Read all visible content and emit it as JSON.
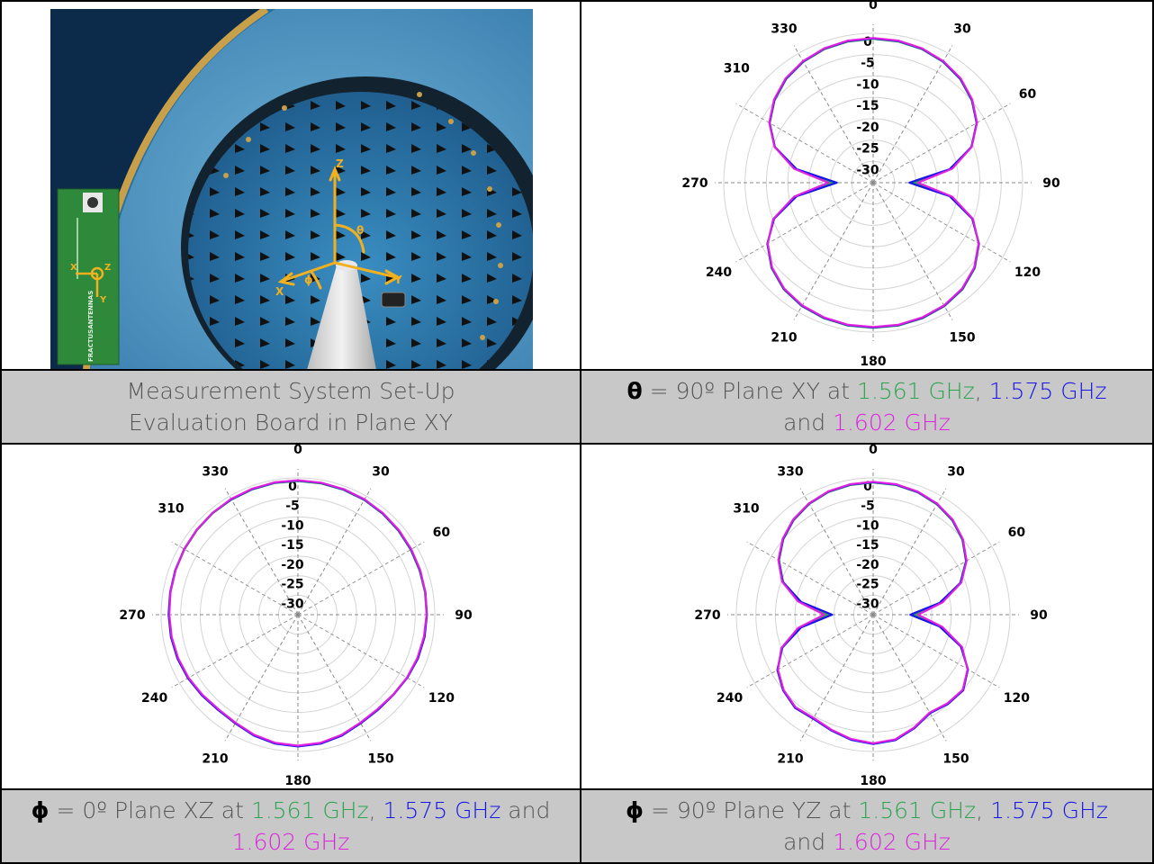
{
  "captions": {
    "setup": {
      "line1": "Measurement System Set-Up",
      "line2": "Evaluation Board in Plane XY"
    },
    "xy": {
      "symbol": "θ",
      "prefix": " = 90º Plane XY at ",
      "f1": "1.561 GHz",
      "sep1": ", ",
      "f2": "1.575 GHz",
      "sep2": " and ",
      "f3": "1.602 GHz"
    },
    "xz": {
      "symbol": "ϕ",
      "prefix": " = 0º Plane XZ at ",
      "f1": "1.561 GHz",
      "sep1": ", ",
      "f2": "1.575 GHz",
      "sep2": " and ",
      "f3": "1.602 GHz"
    },
    "yz": {
      "symbol": "ϕ",
      "prefix": " = 90º Plane YZ at ",
      "f1": "1.561 GHz",
      "sep1": ", ",
      "f2": "1.575 GHz",
      "sep2": " and ",
      "f3": "1.602 GHz"
    }
  },
  "photo": {
    "axis_labels": [
      "Z",
      "Y",
      "X",
      "θ",
      "ϕ"
    ],
    "board_axis_labels": [
      "X",
      "Z",
      "Y"
    ],
    "board_text": "FRACTUSANTENNAS"
  },
  "colors": {
    "green": "#2ca44e",
    "blue": "#1515e8",
    "magenta": "#e020e0",
    "caption_bg": "#c8c8c8"
  },
  "chart_data": [
    {
      "type": "polar",
      "name": "plane-xy",
      "angle_ticks": [
        "0",
        "30",
        "60",
        "90",
        "120",
        "150",
        "180",
        "210",
        "240",
        "270",
        "310",
        "330"
      ],
      "radial_ticks": [
        "0",
        "-5",
        "-10",
        "-15",
        "-20",
        "-25",
        "-30"
      ],
      "rlim": [
        -35,
        0
      ],
      "angles": [
        0,
        10,
        20,
        30,
        40,
        50,
        60,
        70,
        80,
        90,
        100,
        110,
        120,
        130,
        140,
        150,
        160,
        170,
        180
      ],
      "series": [
        {
          "name": "1.561 GHz",
          "color": "#2ca44e",
          "values": [
            -1.3,
            -1.4,
            -1.7,
            -2.3,
            -3.3,
            -4.9,
            -7.0,
            -10.5,
            -16.5,
            -25.5,
            -16.5,
            -10.2,
            -6.4,
            -3.9,
            -2.4,
            -1.6,
            -1.2,
            -1.0,
            -1.0
          ]
        },
        {
          "name": "1.575 GHz",
          "color": "#1515e8",
          "values": [
            -1.2,
            -1.3,
            -1.6,
            -2.2,
            -3.2,
            -4.8,
            -7.0,
            -10.5,
            -16.8,
            -26.5,
            -16.8,
            -10.3,
            -6.4,
            -4.0,
            -2.5,
            -1.7,
            -1.3,
            -1.1,
            -1.1
          ]
        },
        {
          "name": "1.602 GHz",
          "color": "#e020e0",
          "values": [
            -1.1,
            -1.2,
            -1.5,
            -2.1,
            -3.1,
            -4.7,
            -6.9,
            -10.4,
            -16.2,
            -24.5,
            -16.2,
            -10.1,
            -6.5,
            -4.1,
            -2.6,
            -1.8,
            -1.4,
            -1.2,
            -1.2
          ]
        }
      ]
    },
    {
      "type": "polar",
      "name": "plane-xz",
      "angle_ticks": [
        "0",
        "30",
        "60",
        "90",
        "120",
        "150",
        "180",
        "210",
        "240",
        "270",
        "310",
        "330"
      ],
      "radial_ticks": [
        "0",
        "-5",
        "-10",
        "-15",
        "-20",
        "-25",
        "-30"
      ],
      "rlim": [
        -35,
        0
      ],
      "angles": [
        0,
        10,
        20,
        30,
        40,
        50,
        60,
        70,
        80,
        90,
        100,
        110,
        120,
        130,
        140,
        150,
        160,
        170,
        180,
        190,
        200,
        210,
        220,
        230,
        240,
        250,
        260,
        270,
        280,
        290,
        300,
        310,
        320,
        330,
        340,
        350
      ],
      "series": [
        {
          "name": "1.561 GHz",
          "color": "#2ca44e",
          "values": [
            -0.8,
            -0.9,
            -1.0,
            -1.1,
            -1.3,
            -1.5,
            -1.7,
            -1.9,
            -2.0,
            -2.1,
            -2.2,
            -2.4,
            -2.8,
            -3.2,
            -3.3,
            -3.0,
            -2.2,
            -1.6,
            -1.4,
            -1.6,
            -2.2,
            -3.0,
            -3.3,
            -3.0,
            -2.6,
            -2.3,
            -2.1,
            -2.0,
            -1.9,
            -1.7,
            -1.5,
            -1.3,
            -1.1,
            -1.0,
            -0.9,
            -0.8
          ]
        },
        {
          "name": "1.575 GHz",
          "color": "#1515e8",
          "values": [
            -0.7,
            -0.8,
            -0.9,
            -1.0,
            -1.2,
            -1.4,
            -1.6,
            -1.8,
            -1.9,
            -2.0,
            -2.1,
            -2.3,
            -2.7,
            -3.1,
            -3.2,
            -2.9,
            -2.1,
            -1.5,
            -1.3,
            -1.5,
            -2.1,
            -2.9,
            -3.2,
            -2.9,
            -2.5,
            -2.2,
            -2.0,
            -1.9,
            -1.8,
            -1.6,
            -1.4,
            -1.2,
            -1.0,
            -0.9,
            -0.8,
            -0.7
          ]
        },
        {
          "name": "1.602 GHz",
          "color": "#e020e0",
          "values": [
            -0.6,
            -0.7,
            -0.8,
            -0.9,
            -1.1,
            -1.3,
            -1.5,
            -1.7,
            -1.9,
            -2.1,
            -2.3,
            -2.5,
            -2.8,
            -3.2,
            -3.4,
            -3.1,
            -2.3,
            -1.7,
            -1.5,
            -1.7,
            -2.3,
            -3.1,
            -3.4,
            -3.1,
            -2.7,
            -2.4,
            -2.2,
            -2.1,
            -1.9,
            -1.7,
            -1.4,
            -1.2,
            -1.0,
            -0.8,
            -0.7,
            -0.6
          ]
        }
      ]
    },
    {
      "type": "polar",
      "name": "plane-yz",
      "angle_ticks": [
        "0",
        "30",
        "60",
        "90",
        "120",
        "150",
        "180",
        "210",
        "240",
        "270",
        "310",
        "330"
      ],
      "radial_ticks": [
        "0",
        "-5",
        "-10",
        "-15",
        "-20",
        "-25",
        "-30"
      ],
      "rlim": [
        -35,
        0
      ],
      "angles": [
        0,
        10,
        20,
        30,
        40,
        50,
        60,
        70,
        80,
        90,
        100,
        110,
        120,
        130,
        140,
        150,
        160,
        170,
        180,
        190,
        200,
        210,
        220,
        230,
        240,
        250,
        260,
        270,
        280,
        290,
        300,
        310,
        320,
        330,
        340,
        350
      ],
      "series": [
        {
          "name": "1.561 GHz",
          "color": "#2ca44e",
          "values": [
            -1.2,
            -1.3,
            -1.7,
            -2.4,
            -3.5,
            -5.2,
            -7.6,
            -11.3,
            -17.5,
            -24.5,
            -17.5,
            -11.0,
            -7.0,
            -5.0,
            -5.3,
            -6.0,
            -4.2,
            -2.5,
            -2.0,
            -2.6,
            -3.6,
            -4.4,
            -4.0,
            -5.0,
            -6.8,
            -10.3,
            -16.0,
            -23.5,
            -16.0,
            -10.5,
            -7.2,
            -5.0,
            -3.4,
            -2.3,
            -1.6,
            -1.3
          ]
        },
        {
          "name": "1.575 GHz",
          "color": "#1515e8",
          "values": [
            -1.1,
            -1.2,
            -1.6,
            -2.3,
            -3.4,
            -5.1,
            -7.5,
            -11.2,
            -17.8,
            -25.5,
            -17.8,
            -11.1,
            -7.0,
            -4.9,
            -5.2,
            -5.9,
            -4.1,
            -2.4,
            -1.9,
            -2.5,
            -3.5,
            -4.3,
            -3.9,
            -4.9,
            -6.7,
            -10.2,
            -16.3,
            -24.5,
            -16.3,
            -10.4,
            -7.1,
            -4.9,
            -3.3,
            -2.2,
            -1.5,
            -1.2
          ]
        },
        {
          "name": "1.602 GHz",
          "color": "#e020e0",
          "values": [
            -1.0,
            -1.1,
            -1.5,
            -2.2,
            -3.3,
            -5.0,
            -7.4,
            -11.0,
            -17.0,
            -23.5,
            -17.0,
            -10.8,
            -7.1,
            -5.1,
            -5.4,
            -6.1,
            -4.3,
            -2.6,
            -2.1,
            -2.7,
            -3.7,
            -4.5,
            -4.1,
            -5.1,
            -6.9,
            -10.0,
            -15.5,
            -22.5,
            -15.5,
            -10.2,
            -7.0,
            -4.8,
            -3.2,
            -2.1,
            -1.4,
            -1.1
          ]
        }
      ]
    }
  ]
}
